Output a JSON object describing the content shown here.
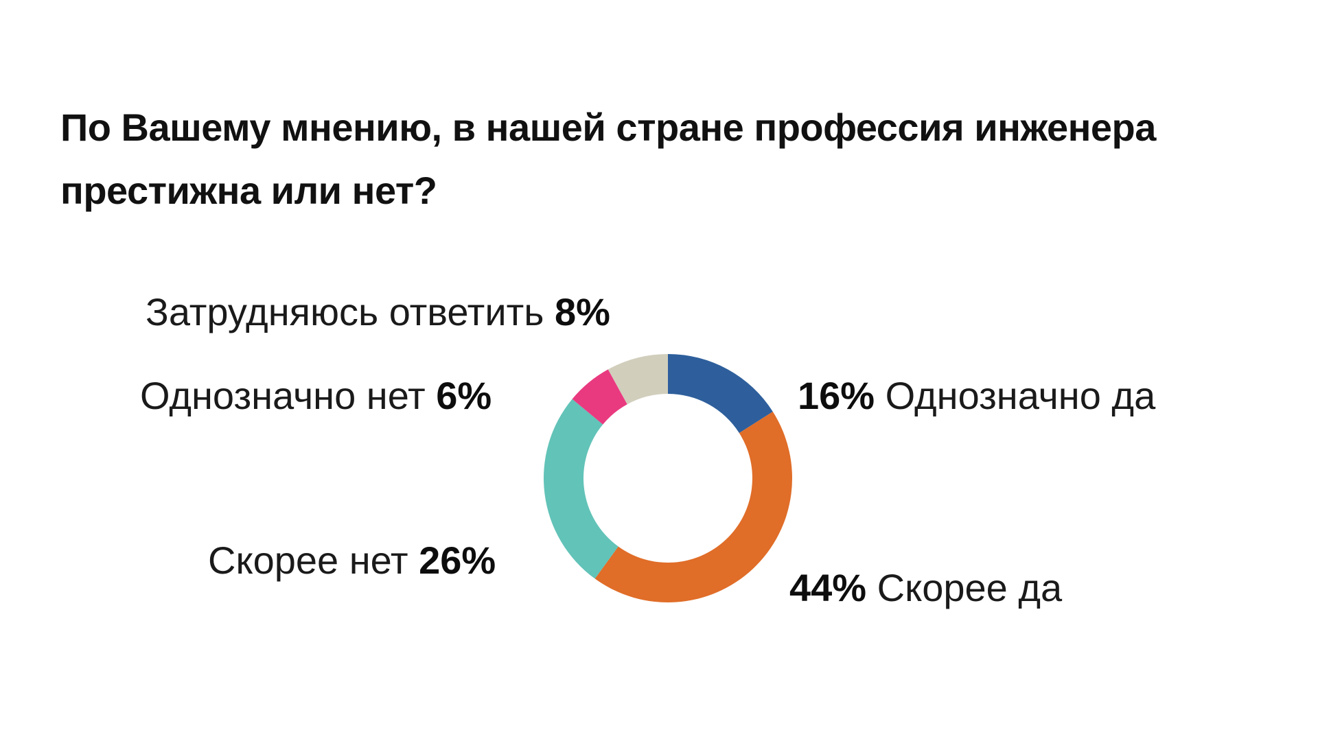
{
  "chart_data": {
    "type": "pie",
    "title": "По Вашему мнению, в нашей стране профессия инженера престижна или нет?",
    "slices": [
      {
        "label": "Однозначно да",
        "value": 16,
        "value_text": "16%",
        "color": "#2e5f9c"
      },
      {
        "label": "Скорее да",
        "value": 44,
        "value_text": "44%",
        "color": "#e06d28"
      },
      {
        "label": "Скорее нет",
        "value": 26,
        "value_text": "26%",
        "color": "#62c3b8"
      },
      {
        "label": "Однозначно нет",
        "value": 6,
        "value_text": "6%",
        "color": "#e93a80"
      },
      {
        "label": "Затрудняюсь ответить",
        "value": 8,
        "value_text": "8%",
        "color": "#d1cebc"
      }
    ],
    "style": "donut",
    "start_angle": "12 o'clock",
    "direction": "clockwise"
  }
}
